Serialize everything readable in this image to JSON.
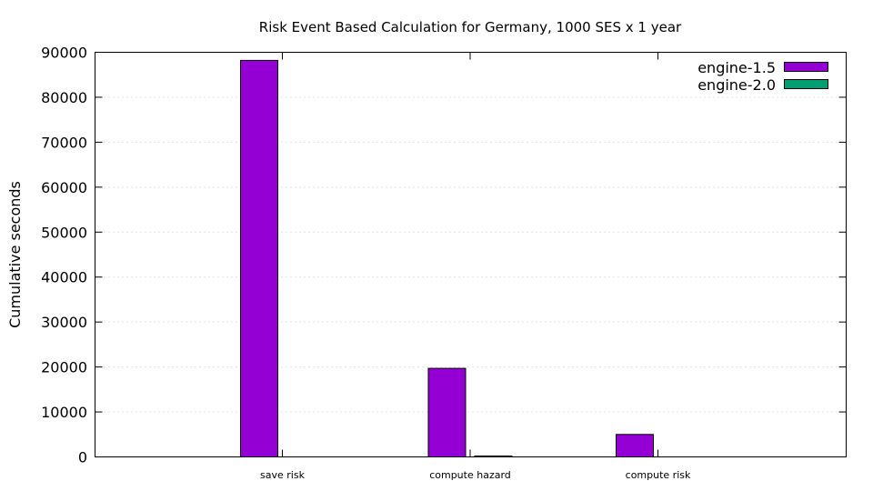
{
  "chart_data": {
    "type": "bar",
    "title": "Risk Event Based Calculation for Germany, 1000 SES x 1 year",
    "xlabel": "",
    "ylabel": "Cumulative seconds",
    "categories": [
      "save risk",
      "compute hazard",
      "compute risk"
    ],
    "series": [
      {
        "name": "engine-1.5",
        "color": "#9400d3",
        "values": [
          88200,
          19700,
          5000
        ]
      },
      {
        "name": "engine-2.0",
        "color": "#009e73",
        "values": [
          0,
          200,
          0
        ]
      }
    ],
    "ylim": [
      0,
      90000
    ],
    "yticks": [
      "0",
      "10000",
      "20000",
      "30000",
      "40000",
      "50000",
      "60000",
      "70000",
      "80000",
      "90000"
    ],
    "grid": true,
    "legend_position": "top-right"
  }
}
